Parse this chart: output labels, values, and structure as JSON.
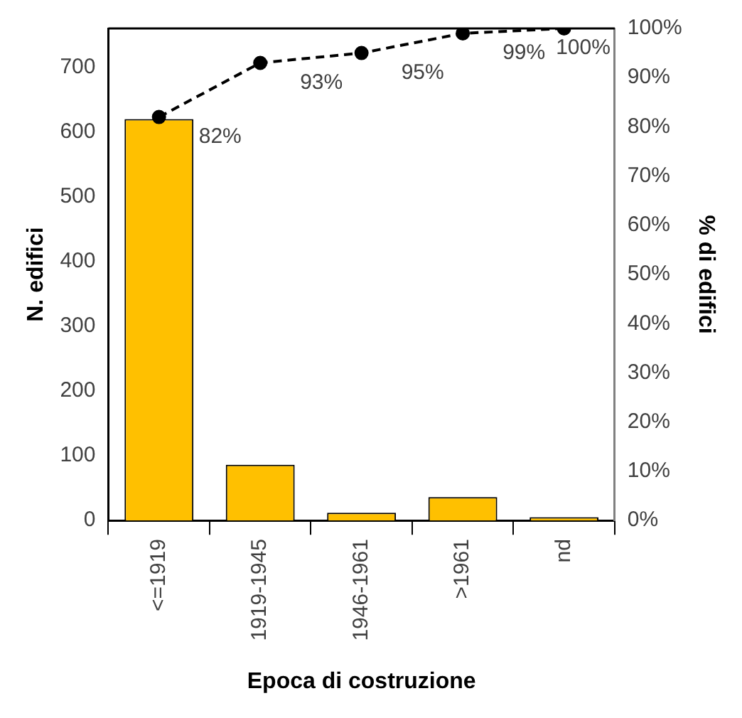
{
  "chart_data": {
    "type": "bar",
    "xlabel": "Epoca di costruzione",
    "ylabel": "N. edifici",
    "y2label": "% di edifici",
    "categories": [
      "<=1919",
      "1919-1945",
      "1946-1961",
      ">1961",
      "nd"
    ],
    "series": [
      {
        "color": "#ffc000",
        "values": [
          620,
          86,
          12,
          36,
          5
        ]
      },
      {
        "type": "line",
        "axis": "y2",
        "color": "#000000",
        "line_style": "dashed",
        "marker": "circle",
        "values": [
          82,
          93,
          95,
          99,
          100
        ],
        "value_labels": [
          "82%",
          "93%",
          "95%",
          "99%",
          "100%"
        ]
      }
    ],
    "ylim": [
      0,
      760
    ],
    "yticks": [
      0,
      100,
      200,
      300,
      400,
      500,
      600,
      700
    ],
    "y2lim": [
      0,
      100
    ],
    "y2ticks": [
      {
        "value": 0,
        "label": "0%"
      },
      {
        "value": 10,
        "label": "10%"
      },
      {
        "value": 20,
        "label": "20%"
      },
      {
        "value": 30,
        "label": "30%"
      },
      {
        "value": 40,
        "label": "40%"
      },
      {
        "value": 50,
        "label": "50%"
      },
      {
        "value": 60,
        "label": "60%"
      },
      {
        "value": 70,
        "label": "70%"
      },
      {
        "value": 80,
        "label": "80%"
      },
      {
        "value": 90,
        "label": "90%"
      },
      {
        "value": 100,
        "label": "100%"
      }
    ],
    "grid": false,
    "legend": false
  }
}
